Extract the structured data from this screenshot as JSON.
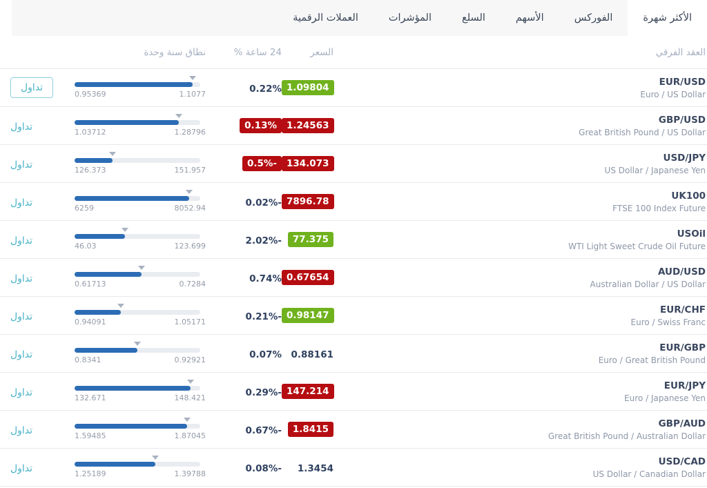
{
  "tabs": [
    {
      "id": "most-popular",
      "label": "الأكثر شهرة",
      "active": true
    },
    {
      "id": "forex",
      "label": "الفوركس",
      "active": false
    },
    {
      "id": "stocks",
      "label": "الأسهم",
      "active": false
    },
    {
      "id": "commodities",
      "label": "السلع",
      "active": false
    },
    {
      "id": "indices",
      "label": "المؤشرات",
      "active": false
    },
    {
      "id": "crypto",
      "label": "العملات الرقمية",
      "active": false
    }
  ],
  "columns": {
    "instrument": "العقد الفرقي",
    "price": "السعر",
    "change_24h": "24 ساعة %",
    "range_1y": "نطاق سنة وحدة"
  },
  "trade_label": "تداول",
  "colors": {
    "positive_badge": "#70b21d",
    "negative_badge": "#b50d11",
    "accent_teal": "#49b3c8",
    "range_fill_blue": "#2c6cb5",
    "tabbar_bg": "#f7f7f8",
    "dark_text": "#2f4160"
  },
  "rows": [
    {
      "symbol": "EUR/USD",
      "name": "Euro / US Dollar",
      "price": "1.09804",
      "price_style": "positive",
      "change": "0.22%",
      "change_style": "plain",
      "range_min": "0.95369",
      "range_max": "1.1077",
      "trade_variant": "button"
    },
    {
      "symbol": "GBP/USD",
      "name": "Great British Pound / US Dollar",
      "price": "1.24563",
      "price_style": "negative",
      "change": "0.13%",
      "change_style": "negative-badge",
      "range_min": "1.03712",
      "range_max": "1.28796",
      "trade_variant": "link"
    },
    {
      "symbol": "USD/JPY",
      "name": "US Dollar / Japanese Yen",
      "price": "134.073",
      "price_style": "negative",
      "change": "0.5%-",
      "change_style": "negative-badge",
      "range_min": "126.373",
      "range_max": "151.957",
      "trade_variant": "link"
    },
    {
      "symbol": "UK100",
      "name": "FTSE 100 Index Future",
      "price": "7896.78",
      "price_style": "negative",
      "change": "0.02%-",
      "change_style": "plain",
      "range_min": "6259",
      "range_max": "8052.94",
      "trade_variant": "link"
    },
    {
      "symbol": "USOil",
      "name": "WTI Light Sweet Crude Oil Future",
      "price": "77.375",
      "price_style": "positive",
      "change": "2.02%-",
      "change_style": "plain",
      "range_min": "46.03",
      "range_max": "123.699",
      "trade_variant": "link"
    },
    {
      "symbol": "AUD/USD",
      "name": "Australian Dollar / US Dollar",
      "price": "0.67654",
      "price_style": "negative",
      "change": "0.74%",
      "change_style": "plain",
      "range_min": "0.61713",
      "range_max": "0.7284",
      "trade_variant": "link"
    },
    {
      "symbol": "EUR/CHF",
      "name": "Euro / Swiss Franc",
      "price": "0.98147",
      "price_style": "positive",
      "change": "0.21%-",
      "change_style": "plain",
      "range_min": "0.94091",
      "range_max": "1.05171",
      "trade_variant": "link"
    },
    {
      "symbol": "EUR/GBP",
      "name": "Euro / Great British Pound",
      "price": "0.88161",
      "price_style": "plain",
      "change": "0.07%",
      "change_style": "plain",
      "range_min": "0.8341",
      "range_max": "0.92921",
      "trade_variant": "link"
    },
    {
      "symbol": "EUR/JPY",
      "name": "Euro / Japanese Yen",
      "price": "147.214",
      "price_style": "negative",
      "change": "0.29%-",
      "change_style": "plain",
      "range_min": "132.671",
      "range_max": "148.421",
      "trade_variant": "link"
    },
    {
      "symbol": "GBP/AUD",
      "name": "Great British Pound / Australian Dollar",
      "price": "1.8415",
      "price_style": "negative",
      "change": "0.67%-",
      "change_style": "plain",
      "range_min": "1.59485",
      "range_max": "1.87045",
      "trade_variant": "link"
    },
    {
      "symbol": "USD/CAD",
      "name": "US Dollar / Canadian Dollar",
      "price": "1.3454",
      "price_style": "plain",
      "change": "0.08%-",
      "change_style": "plain",
      "range_min": "1.25189",
      "range_max": "1.39788",
      "trade_variant": "link"
    }
  ]
}
